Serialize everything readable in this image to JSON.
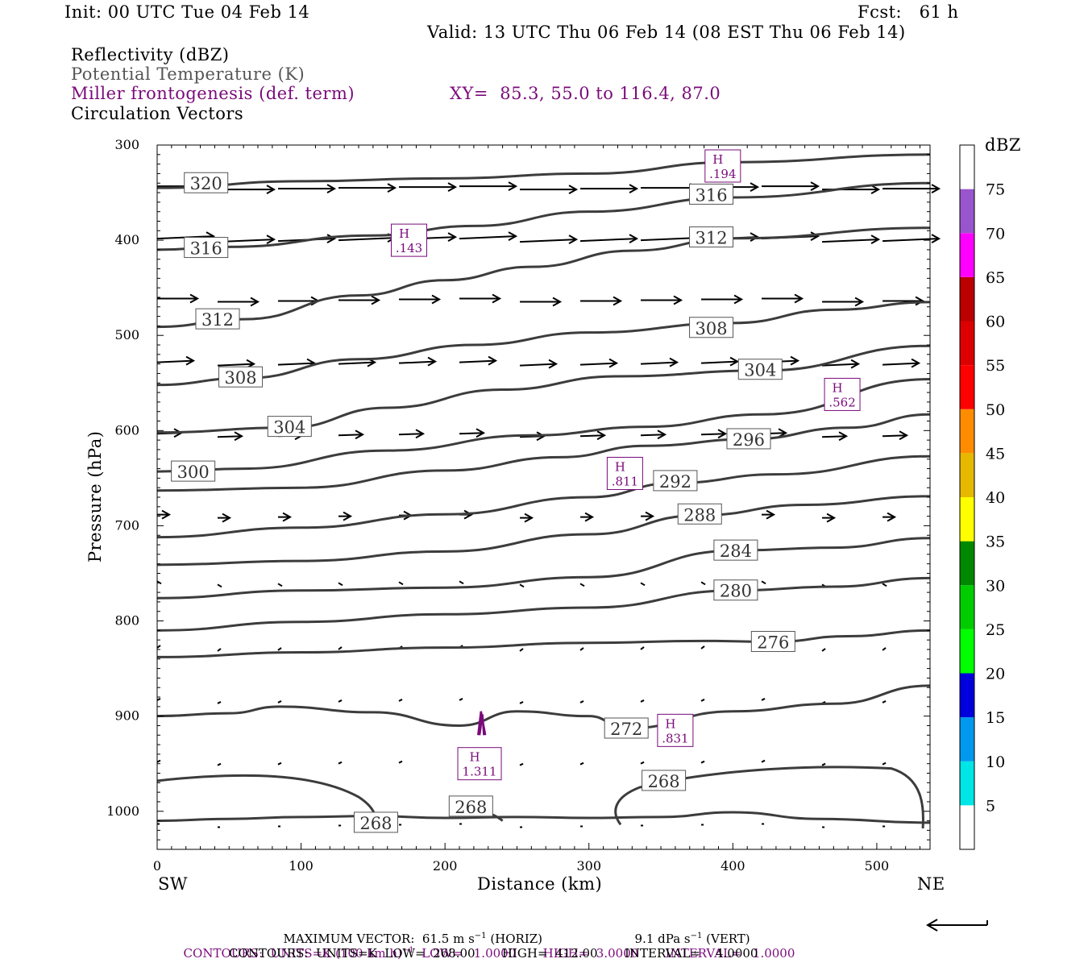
{
  "header": {
    "init": "Init: 00 UTC Tue 04 Feb 14",
    "fcst": "Fcst:   61 h",
    "valid": "Valid: 13 UTC Thu 06 Feb 14 (08 EST Thu 06 Feb 14)",
    "field1": "Reflectivity (dBZ)",
    "field2": "Potential Temperature (K)",
    "field3": "Miller frontogenesis (def. term)",
    "xy": "XY=  85.3, 55.0 to 116.4, 87.0",
    "field4": "Circulation Vectors"
  },
  "footer": {
    "maxvec": "MAXIMUM VECTOR:  61.5 m s",
    "maxvec_h": "(HORIZ)",
    "maxvec_v": "9.1 dPa s",
    "maxvec_v2": "(VERT)",
    "cont1a": "CONTOURS:  UNITS=K (100 km h)",
    "cont1b": "LOW=   1.0000       HIGH=  3.0000       INTERVAL=   1.0000",
    "cont2": "CONTOURS:  UNITS=K  LOW=  268.00       HIGH=  412.00       INTERVAL=    4.0000"
  },
  "colors": {
    "theta": "#3c3c3c",
    "fronto": "#7a0a7a",
    "vectors": "#000000"
  },
  "chart_data": {
    "type": "line",
    "xlabel": "Distance (km)",
    "ylabel": "Pressure (hPa)",
    "xlim": [
      0,
      537
    ],
    "ylim": [
      1040,
      300
    ],
    "xticks": [
      0,
      100,
      200,
      300,
      400,
      500
    ],
    "yticks": [
      300,
      400,
      500,
      600,
      700,
      800,
      900,
      1000
    ],
    "x_end_left": "SW",
    "x_end_right": "NE",
    "colorbar": {
      "unit": "dBZ",
      "levels": [
        5,
        10,
        15,
        20,
        25,
        30,
        35,
        40,
        45,
        50,
        55,
        60,
        65,
        70,
        75
      ],
      "colors": [
        "#ffffff",
        "#00e5e5",
        "#0099ee",
        "#0000dd",
        "#00ff00",
        "#00cc00",
        "#008800",
        "#ffff00",
        "#e6b800",
        "#ff8c00",
        "#ff0000",
        "#dd0000",
        "#bb0000",
        "#ff00ff",
        "#9955cc",
        "#ffffff"
      ]
    },
    "theta_contours": [
      {
        "label": "320",
        "label_at": [
          34,
          340
        ],
        "points": [
          [
            0,
            345
          ],
          [
            100,
            338
          ],
          [
            200,
            335
          ],
          [
            300,
            330
          ],
          [
            400,
            318
          ],
          [
            537,
            310
          ]
        ]
      },
      {
        "label": "316",
        "label_at": [
          34,
          408
        ],
        "points": [
          [
            0,
            410
          ],
          [
            50,
            407
          ],
          [
            150,
            395
          ],
          [
            220,
            385
          ],
          [
            300,
            370
          ],
          [
            400,
            355
          ],
          [
            537,
            340
          ]
        ]
      },
      {
        "label": "316",
        "label_at": [
          385,
          352
        ],
        "points": []
      },
      {
        "label": "312",
        "label_at": [
          42,
          483
        ],
        "points": [
          [
            0,
            491
          ],
          [
            60,
            483
          ],
          [
            140,
            458
          ],
          [
            200,
            442
          ],
          [
            260,
            428
          ],
          [
            330,
            411
          ],
          [
            400,
            398
          ],
          [
            537,
            387
          ]
        ]
      },
      {
        "label": "312",
        "label_at": [
          385,
          397
        ],
        "points": []
      },
      {
        "label": "308",
        "label_at": [
          58,
          544
        ],
        "points": [
          [
            0,
            552
          ],
          [
            60,
            545
          ],
          [
            140,
            525
          ],
          [
            220,
            510
          ],
          [
            300,
            497
          ],
          [
            400,
            487
          ],
          [
            470,
            473
          ],
          [
            537,
            465
          ]
        ]
      },
      {
        "label": "308",
        "label_at": [
          385,
          492
        ],
        "points": []
      },
      {
        "label": "304",
        "label_at": [
          92,
          596
        ],
        "points": [
          [
            0,
            602
          ],
          [
            90,
            597
          ],
          [
            160,
            576
          ],
          [
            240,
            557
          ],
          [
            320,
            543
          ],
          [
            420,
            537
          ],
          [
            537,
            511
          ]
        ]
      },
      {
        "label": "304",
        "label_at": [
          419,
          536
        ],
        "points": []
      },
      {
        "label": "300",
        "label_at": [
          25,
          643
        ],
        "points": [
          [
            0,
            643
          ],
          [
            60,
            640
          ],
          [
            160,
            621
          ],
          [
            260,
            605
          ],
          [
            340,
            596
          ],
          [
            420,
            583
          ],
          [
            537,
            546
          ]
        ]
      },
      {
        "label": "296",
        "label_at": [
          411,
          609
        ],
        "points": [
          [
            0,
            663
          ],
          [
            100,
            660
          ],
          [
            200,
            642
          ],
          [
            280,
            628
          ],
          [
            340,
            616
          ],
          [
            411,
            609
          ],
          [
            480,
            597
          ],
          [
            537,
            583
          ]
        ]
      },
      {
        "label": "292",
        "label_at": [
          360,
          653
        ],
        "points": [
          [
            0,
            712
          ],
          [
            100,
            702
          ],
          [
            200,
            688
          ],
          [
            300,
            670
          ],
          [
            360,
            655
          ],
          [
            430,
            646
          ],
          [
            537,
            627
          ]
        ]
      },
      {
        "label": "288",
        "label_at": [
          377,
          688
        ],
        "points": [
          [
            0,
            741
          ],
          [
            100,
            737
          ],
          [
            200,
            727
          ],
          [
            300,
            709
          ],
          [
            377,
            689
          ],
          [
            450,
            678
          ],
          [
            537,
            669
          ]
        ]
      },
      {
        "label": "284",
        "label_at": [
          402,
          726
        ],
        "points": [
          [
            0,
            776
          ],
          [
            100,
            768
          ],
          [
            200,
            765
          ],
          [
            300,
            754
          ],
          [
            402,
            726
          ],
          [
            470,
            723
          ],
          [
            537,
            713
          ]
        ]
      },
      {
        "label": "280",
        "label_at": [
          402,
          768
        ],
        "points": [
          [
            0,
            810
          ],
          [
            100,
            801
          ],
          [
            200,
            793
          ],
          [
            300,
            786
          ],
          [
            402,
            768
          ],
          [
            470,
            764
          ],
          [
            537,
            755
          ]
        ]
      },
      {
        "label": "276",
        "label_at": [
          428,
          822
        ],
        "points": [
          [
            0,
            838
          ],
          [
            100,
            833
          ],
          [
            200,
            828
          ],
          [
            300,
            823
          ],
          [
            380,
            821
          ],
          [
            428,
            822
          ],
          [
            480,
            816
          ],
          [
            537,
            810
          ]
        ]
      },
      {
        "label": "272",
        "label_at": [
          326,
          913
        ],
        "points": [
          [
            0,
            900
          ],
          [
            50,
            897
          ],
          [
            85,
            890
          ],
          [
            150,
            896
          ],
          [
            210,
            910
          ],
          [
            250,
            895
          ],
          [
            300,
            900
          ],
          [
            326,
            913
          ],
          [
            400,
            895
          ],
          [
            470,
            887
          ],
          [
            537,
            868
          ]
        ]
      },
      {
        "label": "268",
        "label_at": [
          152,
          1012
        ],
        "points": [
          [
            0,
            1010
          ],
          [
            50,
            1008
          ],
          [
            100,
            1006
          ],
          [
            150,
            1005
          ],
          [
            200,
            1007
          ],
          [
            250,
            1006
          ],
          [
            300,
            1007
          ],
          [
            350,
            1006
          ],
          [
            400,
            1001
          ],
          [
            460,
            1008
          ],
          [
            537,
            1012
          ]
        ]
      },
      {
        "label": "268",
        "label_at": [
          218,
          995
        ],
        "points": []
      },
      {
        "label": "268",
        "label_at": [
          352,
          968
        ],
        "points": []
      }
    ],
    "fronto_maxima": [
      {
        "label": "H",
        "value": ".194",
        "at": [
          393,
          322
        ]
      },
      {
        "label": "H",
        "value": ".143",
        "at": [
          175,
          400
        ]
      },
      {
        "label": "H",
        "value": ".562",
        "at": [
          476,
          562
        ]
      },
      {
        "label": "H",
        "value": ".811",
        "at": [
          325,
          645
        ]
      },
      {
        "label": "H",
        "value": ".831",
        "at": [
          360,
          915
        ]
      },
      {
        "label": "H",
        "value": "1.311",
        "at": [
          224,
          950
        ]
      }
    ]
  }
}
